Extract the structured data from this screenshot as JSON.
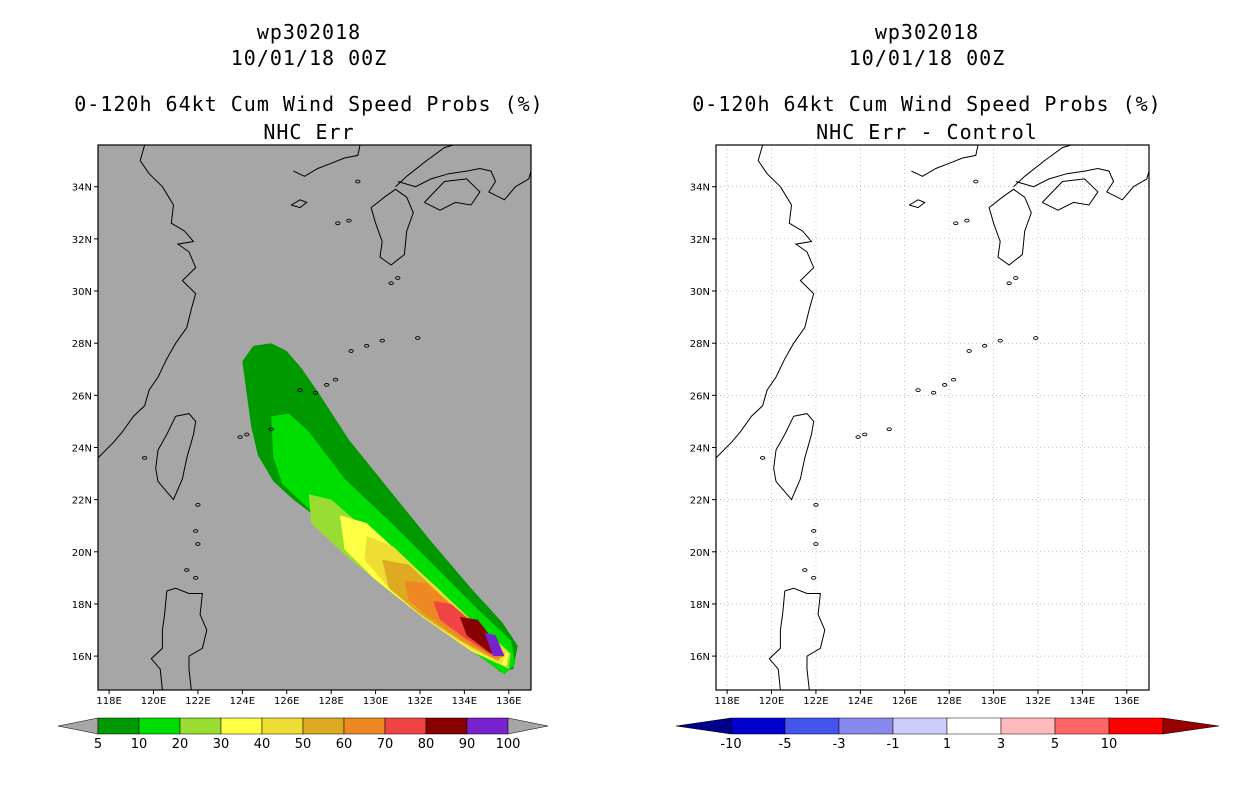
{
  "left_panel": {
    "title_id": "wp302018",
    "title_date": "10/01/18 00Z",
    "title_product": "0-120h 64kt Cum Wind Speed Probs (%)",
    "title_sub": "NHC Err",
    "colorbar_labels": [
      "5",
      "10",
      "20",
      "30",
      "40",
      "50",
      "60",
      "70",
      "80",
      "90",
      "100"
    ],
    "colorbar_colors": [
      "#009900",
      "#00dd00",
      "#99dd33",
      "#ffff44",
      "#eedd33",
      "#ddaa22",
      "#ee8822",
      "#ee4444",
      "#880000",
      "#7722cc"
    ]
  },
  "right_panel": {
    "title_id": "wp302018",
    "title_date": "10/01/18 00Z",
    "title_product": "0-120h 64kt Cum Wind Speed Probs (%)",
    "title_sub": "NHC Err - Control",
    "colorbar_labels": [
      "-10",
      "-5",
      "-3",
      "-1",
      "1",
      "3",
      "5",
      "10"
    ],
    "colorbar_colors": [
      "#0000cc",
      "#4455ee",
      "#8888ee",
      "#ccccff",
      "#ffffff",
      "#ffbbbb",
      "#ff6666",
      "#ff0000",
      "#990000"
    ]
  },
  "map": {
    "lon_labels": [
      "118E",
      "120E",
      "122E",
      "124E",
      "126E",
      "128E",
      "130E",
      "132E",
      "134E",
      "136E"
    ],
    "lat_labels": [
      "34N",
      "32N",
      "30N",
      "28N",
      "26N",
      "24N",
      "22N",
      "20N",
      "18N",
      "16N"
    ],
    "land_color": "#ffffff",
    "background_color": "#a6a6a6"
  }
}
